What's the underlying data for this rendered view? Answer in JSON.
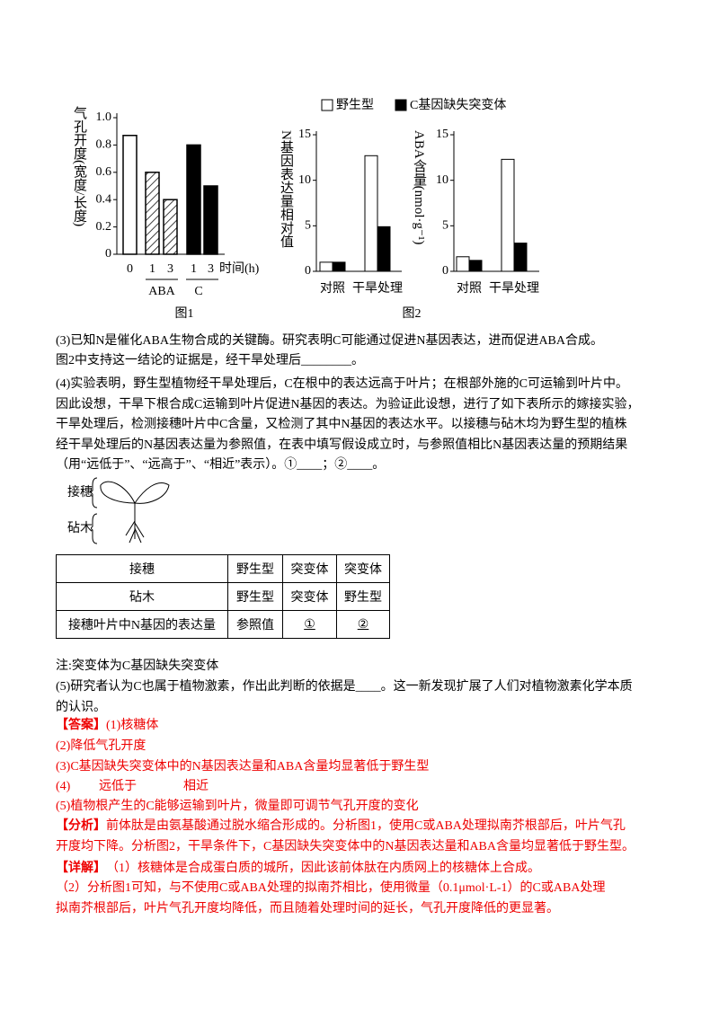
{
  "figure1": {
    "type": "bar",
    "ylabel": "气孔开度(宽度/长度)",
    "ylim": [
      0,
      1
    ],
    "yticks": [
      0,
      0.2,
      0.4,
      0.6,
      0.8,
      {
        "value": 1,
        "label": "1.0"
      }
    ],
    "categories": [
      "0",
      "1",
      "3",
      "1",
      "3"
    ],
    "values": [
      0.87,
      0.6,
      0.4,
      0.8,
      0.5
    ],
    "fills": [
      "white",
      "hatch",
      "hatch",
      "black",
      "black"
    ],
    "groups": [
      "ABA",
      "C"
    ],
    "xlabel": "时间(h)",
    "caption": "图1"
  },
  "figure2": {
    "series": [
      {
        "name": "野生型",
        "color": "white"
      },
      {
        "name": "C基因缺失突变体",
        "color": "black"
      }
    ],
    "panels": [
      {
        "type": "bar",
        "ylabel": "N基因表达量相对值",
        "ylim": [
          0,
          15
        ],
        "yticks": [
          0,
          5,
          10,
          15
        ],
        "categories": [
          "对照",
          "干旱处理"
        ],
        "values": [
          [
            1,
            12.7
          ],
          [
            1,
            4.9
          ]
        ]
      },
      {
        "type": "bar",
        "ylabel": "ABA含量(nmol·g⁻¹)",
        "ylim": [
          0,
          15
        ],
        "yticks": [
          0,
          5,
          10,
          15
        ],
        "categories": [
          "对照",
          "干旱处理"
        ],
        "values": [
          [
            1.6,
            12.3
          ],
          [
            1.2,
            3.1
          ]
        ]
      }
    ],
    "caption": "图2"
  },
  "q3": [
    "(3)已知N是催化ABA生物合成的关键酶。研究表明C可能通过促进N基因表达，进而促进ABA合成。",
    "图2中支持这一结论的证据是，经干旱处理后________。"
  ],
  "q4": [
    "(4)实验表明，野生型植物经干旱处理后，C在根中的表达远高于叶片；在根部外施的C可运输到叶片中。",
    "因此设想，干旱下根合成C运输到叶片促进N基因的表达。为验证此设想，进行了如下表所示的嫁接实验，",
    "干旱处理后，检测接穗叶片中C含量，又检测了其中N基因的表达水平。以接穗与砧木均为野生型的植株",
    "经干旱处理后的N基因表达量为参照值，在表中填写假设成立时，与参照值相比N基因表达量的预期结果",
    "（用“远低于”、“远高于”、“相近”表示）。①____；②____。"
  ],
  "plant": {
    "scion": "接穗",
    "stock": "砧木"
  },
  "table": {
    "rows": [
      [
        "接穗",
        "野生型",
        "突变体",
        "突变体"
      ],
      [
        "砧木",
        "野生型",
        "突变体",
        "野生型"
      ],
      [
        "接穗叶片中N基因的表达量",
        "参照值",
        "①",
        "②"
      ]
    ]
  },
  "note": "注:突变体为C基因缺失突变体",
  "q5": [
    "(5)研究者认为C也属于植物激素，作出此判断的依据是____。这一新发现扩展了人们对植物激素化学本质",
    "的认识。"
  ],
  "answer": {
    "label": "【答案】",
    "lines": [
      "(1)核糖体",
      "(2)降低气孔开度",
      "(3)C基因缺失突变体中的N基因表达量和ABA含量均显著低于野生型"
    ],
    "line4": [
      "(4)",
      "远低于",
      "相近"
    ],
    "line5": "(5)植物根产生的C能够运输到叶片，微量即可调节气孔开度的变化"
  },
  "analysis": {
    "label": "【分析】",
    "lines": [
      "前体肽是由氨基酸通过脱水缩合形成的。分析图1，使用C或ABA处理拟南芥根部后，叶片气孔",
      "开度均下降。分析图2，干旱条件下，C基因缺失突变体中的N基因表达量和ABA含量均显著低于野生型。"
    ]
  },
  "detail": {
    "label": "【详解】",
    "lines": [
      "（1）核糖体是合成蛋白质的城所，因此该前体肽在内质网上的核糖体上合成。",
      "（2）分析图1可知，与不使用C或ABA处理的拟南芥相比，使用微量（0.1μmol·L-1）的C或ABA处理",
      "拟南芥根部后，叶片气孔开度均降低，而且随着处理时间的延长，气孔开度降低的更显著。"
    ]
  }
}
